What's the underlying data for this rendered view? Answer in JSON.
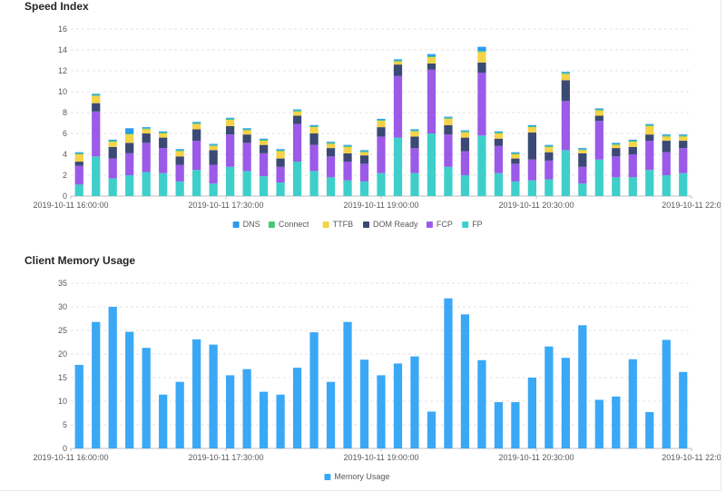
{
  "panels": [
    {
      "title": "Speed Index",
      "chart_data": {
        "type": "bar",
        "stacked": true,
        "ylim": [
          0,
          16
        ],
        "yticks": [
          0,
          2,
          4,
          6,
          8,
          10,
          12,
          14,
          16
        ],
        "grid": true,
        "legend_position": "bottom",
        "x_tick_labels": [
          "2019-10-11 16:00:00",
          "2019-10-11 17:30:00",
          "2019-10-11 19:00:00",
          "2019-10-11 20:30:00",
          "2019-10-11 22:0"
        ],
        "x_tick_indices": [
          0,
          12,
          24,
          36,
          48
        ],
        "series": [
          {
            "name": "FP",
            "color": "#3ecfcb",
            "values": [
              1.1,
              3.8,
              1.7,
              2.0,
              2.3,
              2.2,
              1.4,
              2.5,
              1.2,
              2.8,
              2.4,
              1.9,
              1.3,
              3.3,
              2.4,
              1.8,
              1.5,
              1.4,
              2.2,
              5.6,
              2.2,
              6.0,
              2.8,
              2.0,
              5.8,
              2.2,
              1.4,
              1.5,
              1.6,
              4.4,
              1.2,
              3.5,
              1.8,
              1.8,
              2.5,
              2.0,
              2.2
            ]
          },
          {
            "name": "FCP",
            "color": "#9b5ae8",
            "values": [
              1.8,
              4.3,
              1.9,
              2.1,
              2.8,
              2.4,
              1.6,
              2.8,
              1.8,
              3.1,
              2.7,
              2.2,
              1.5,
              3.6,
              2.5,
              2.0,
              1.8,
              1.7,
              3.5,
              5.9,
              2.4,
              6.1,
              3.1,
              2.3,
              6.0,
              2.6,
              1.7,
              2.0,
              1.8,
              4.7,
              1.6,
              3.7,
              2.0,
              2.2,
              2.8,
              2.2,
              2.4
            ]
          },
          {
            "name": "DOM Ready",
            "color": "#3a4a74",
            "values": [
              0.4,
              0.8,
              1.1,
              1.0,
              0.9,
              1.0,
              0.8,
              1.1,
              1.4,
              0.8,
              0.8,
              0.8,
              0.8,
              0.8,
              1.1,
              0.8,
              0.8,
              0.8,
              0.9,
              1.1,
              1.1,
              0.6,
              0.9,
              1.3,
              1.0,
              0.7,
              0.5,
              2.6,
              0.8,
              2.0,
              1.3,
              0.5,
              0.8,
              0.7,
              0.6,
              1.1,
              0.7
            ]
          },
          {
            "name": "TTFB",
            "color": "#f5d248",
            "values": [
              0.7,
              0.7,
              0.5,
              0.8,
              0.4,
              0.4,
              0.5,
              0.5,
              0.4,
              0.6,
              0.4,
              0.4,
              0.7,
              0.4,
              0.6,
              0.4,
              0.6,
              0.3,
              0.6,
              0.3,
              0.5,
              0.6,
              0.6,
              0.5,
              1.0,
              0.5,
              0.4,
              0.5,
              0.5,
              0.6,
              0.3,
              0.5,
              0.3,
              0.5,
              0.8,
              0.4,
              0.4
            ]
          },
          {
            "name": "Connect",
            "color": "#48c878",
            "values": [
              0.1,
              0.1,
              0.1,
              0.1,
              0.1,
              0.1,
              0.1,
              0.1,
              0.1,
              0.1,
              0.1,
              0.1,
              0.1,
              0.1,
              0.1,
              0.1,
              0.1,
              0.1,
              0.1,
              0.1,
              0.1,
              0.1,
              0.1,
              0.1,
              0.1,
              0.1,
              0.1,
              0.1,
              0.1,
              0.1,
              0.1,
              0.1,
              0.1,
              0.1,
              0.1,
              0.1,
              0.1
            ]
          },
          {
            "name": "DNS",
            "color": "#2a9cee",
            "values": [
              0.1,
              0.1,
              0.1,
              0.5,
              0.1,
              0.1,
              0.1,
              0.1,
              0.1,
              0.1,
              0.1,
              0.1,
              0.1,
              0.1,
              0.1,
              0.1,
              0.1,
              0.1,
              0.1,
              0.1,
              0.1,
              0.2,
              0.1,
              0.1,
              0.4,
              0.1,
              0.1,
              0.1,
              0.1,
              0.1,
              0.1,
              0.1,
              0.1,
              0.1,
              0.1,
              0.1,
              0.1
            ]
          }
        ],
        "legend_order": [
          "DNS",
          "Connect",
          "TTFB",
          "DOM Ready",
          "FCP",
          "FP"
        ]
      }
    },
    {
      "title": "Client Memory Usage",
      "chart_data": {
        "type": "bar",
        "ylim": [
          0,
          35
        ],
        "yticks": [
          0,
          5,
          10,
          15,
          20,
          25,
          30,
          35
        ],
        "grid": true,
        "legend_position": "bottom",
        "x_tick_labels": [
          "2019-10-11 16:00:00",
          "2019-10-11 17:30:00",
          "2019-10-11 19:00:00",
          "2019-10-11 20:30:00",
          "2019-10-11 22:0"
        ],
        "x_tick_indices": [
          0,
          12,
          24,
          36,
          48
        ],
        "series": [
          {
            "name": "Memory Usage",
            "color": "#3aa8f5",
            "values": [
              17.7,
              26.8,
              30.0,
              24.7,
              21.3,
              11.4,
              14.1,
              23.1,
              22.0,
              15.5,
              16.8,
              12.0,
              11.4,
              17.1,
              24.6,
              14.1,
              26.8,
              18.8,
              15.5,
              18.0,
              19.5,
              7.8,
              31.8,
              28.4,
              18.7,
              9.8,
              9.8,
              15.0,
              21.6,
              19.2,
              26.1,
              10.3,
              11.0,
              18.9,
              7.7,
              23.0,
              16.2
            ]
          }
        ]
      }
    }
  ]
}
